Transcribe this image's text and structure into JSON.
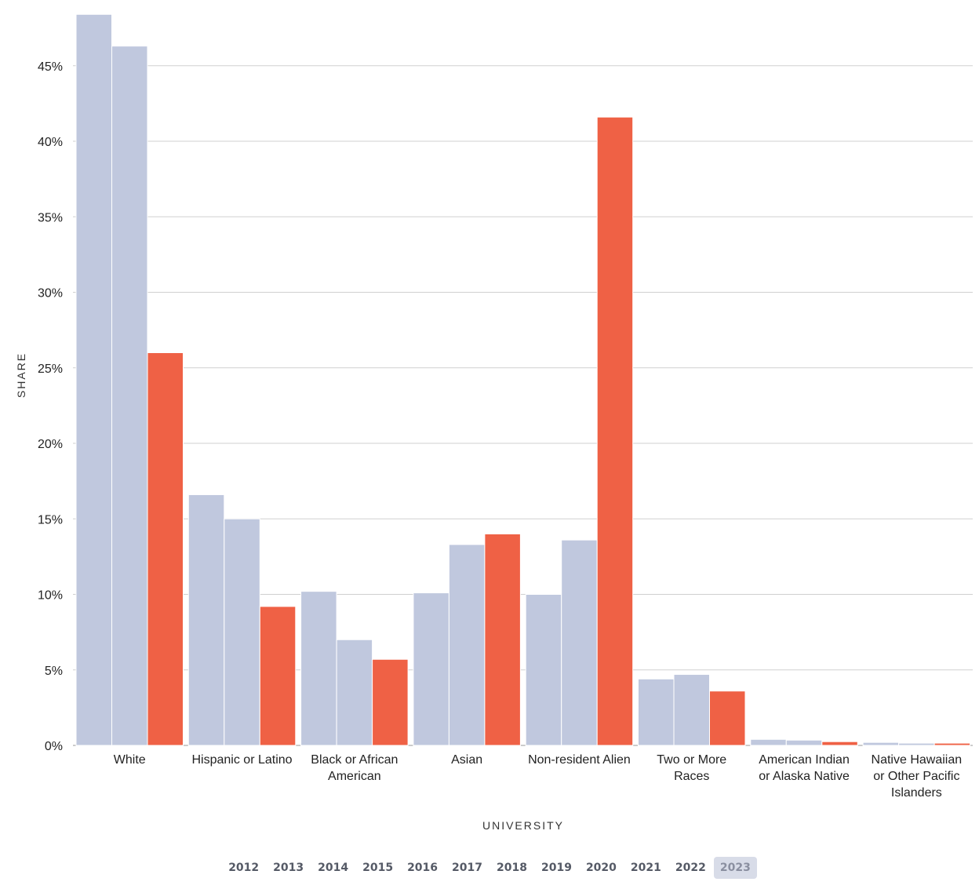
{
  "chart_data": {
    "type": "bar",
    "xlabel": "UNIVERSITY",
    "ylabel": "SHARE",
    "ylim": [
      0,
      49
    ],
    "yticks": [
      0,
      5,
      10,
      15,
      20,
      25,
      30,
      35,
      40,
      45
    ],
    "ytick_labels": [
      "0%",
      "5%",
      "10%",
      "15%",
      "20%",
      "25%",
      "30%",
      "35%",
      "40%",
      "45%"
    ],
    "grid": true,
    "colors": {
      "default": "#c0c8de",
      "highlight": "#ef6145"
    },
    "categories": [
      [
        "White"
      ],
      [
        "Hispanic or Latino"
      ],
      [
        "Black or African",
        "American"
      ],
      [
        "Asian"
      ],
      [
        "Non-resident Alien"
      ],
      [
        "Two or More",
        "Races"
      ],
      [
        "American Indian",
        "or Alaska Native"
      ],
      [
        "Native Hawaiian",
        "or Other Pacific",
        "Islanders"
      ]
    ],
    "groups": [
      {
        "values": [
          48.4,
          46.3,
          26.0
        ],
        "highlight": [
          false,
          false,
          true
        ]
      },
      {
        "values": [
          16.6,
          15.0,
          9.2
        ],
        "highlight": [
          false,
          false,
          true
        ]
      },
      {
        "values": [
          10.2,
          7.0,
          5.7
        ],
        "highlight": [
          false,
          false,
          true
        ]
      },
      {
        "values": [
          10.1,
          13.3,
          14.0
        ],
        "highlight": [
          false,
          false,
          true
        ]
      },
      {
        "values": [
          10.0,
          13.6,
          41.6
        ],
        "highlight": [
          false,
          false,
          true
        ]
      },
      {
        "values": [
          4.4,
          4.7,
          3.6
        ],
        "highlight": [
          false,
          false,
          true
        ]
      },
      {
        "values": [
          0.4,
          0.35,
          0.25
        ],
        "highlight": [
          false,
          false,
          true
        ]
      },
      {
        "values": [
          0.2,
          0.15,
          0.15
        ],
        "highlight": [
          false,
          false,
          true
        ]
      }
    ]
  },
  "timeline": {
    "years": [
      "2012",
      "2013",
      "2014",
      "2015",
      "2016",
      "2017",
      "2018",
      "2019",
      "2020",
      "2021",
      "2022",
      "2023"
    ],
    "selected": "2023"
  }
}
